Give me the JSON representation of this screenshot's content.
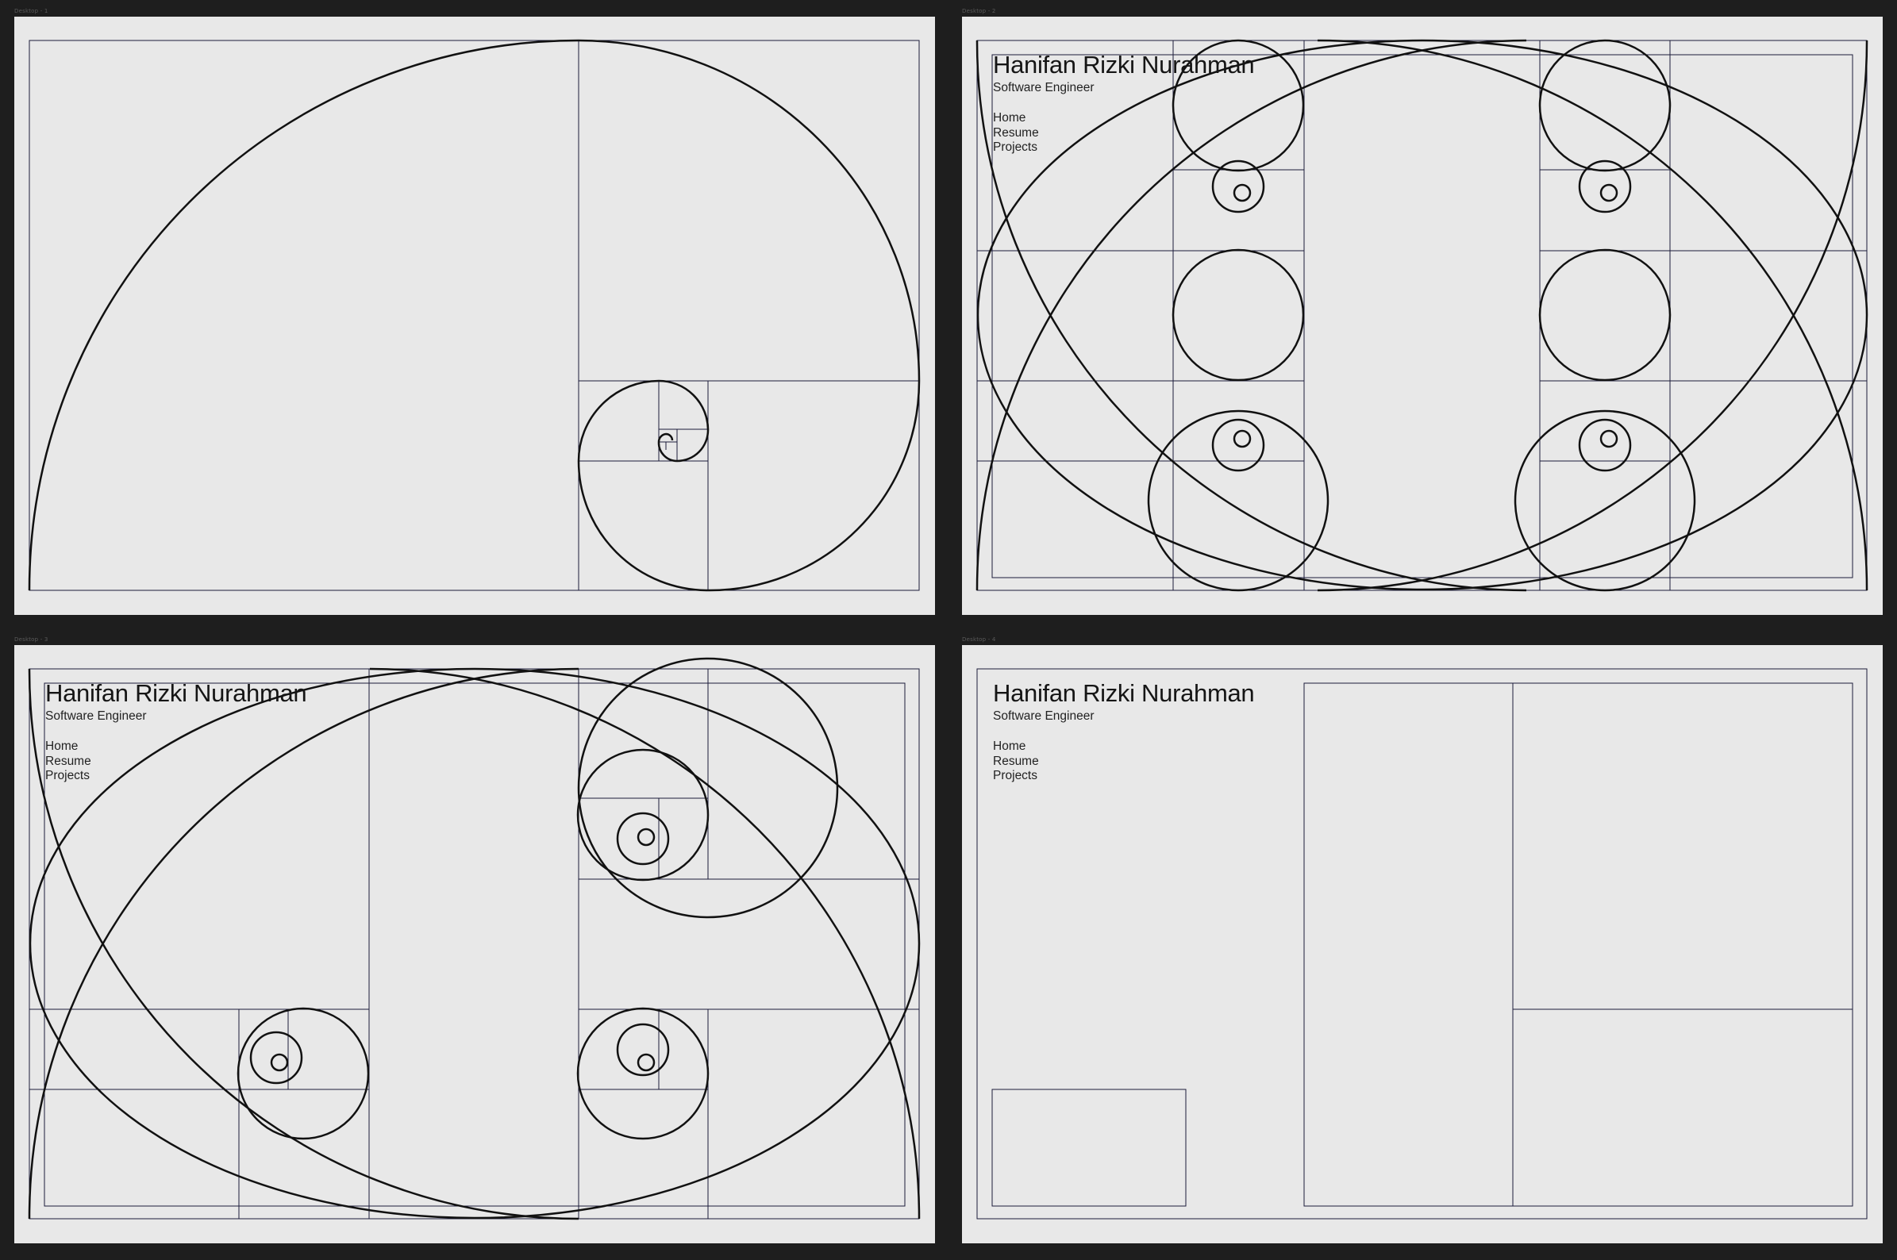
{
  "frames": [
    {
      "id": "a1",
      "label": "Desktop - 1",
      "show_header": false
    },
    {
      "id": "a2",
      "label": "Desktop - 2",
      "show_header": true
    },
    {
      "id": "a3",
      "label": "Desktop - 3",
      "show_header": true
    },
    {
      "id": "a4",
      "label": "Desktop - 4",
      "show_header": true
    }
  ],
  "profile": {
    "name": "Hanifan Rizki Nurahman",
    "title": "Software Engineer"
  },
  "nav": [
    {
      "label": "Home"
    },
    {
      "label": "Resume"
    },
    {
      "label": "Projects"
    }
  ],
  "colors": {
    "canvas": "#1e1e1e",
    "artboard": "#e8e8e8",
    "guide_line": "#1b1b3a",
    "spiral": "#111111"
  },
  "icons": [
    "golden-spiral-guide-graphic"
  ]
}
